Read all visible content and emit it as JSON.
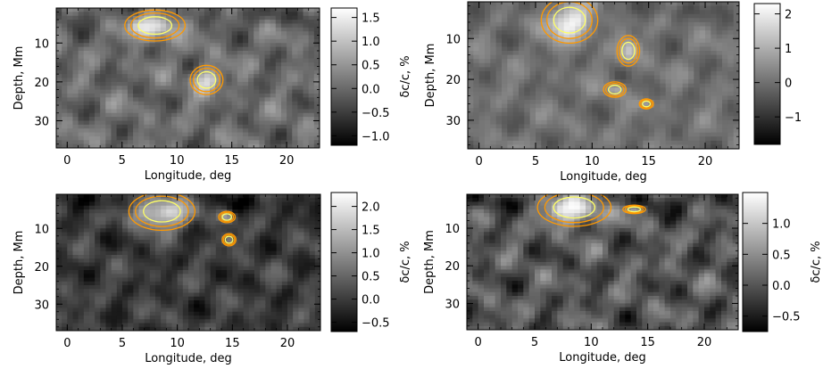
{
  "chart_data": [
    {
      "type": "heatmap",
      "xlabel": "Longitude, deg",
      "ylabel": "Depth, Mm",
      "colorbar_label": "δc/c, %",
      "x_ticks": [
        0,
        5,
        10,
        15,
        20
      ],
      "y_ticks": [
        10,
        20,
        30
      ],
      "xlim": [
        -1,
        23
      ],
      "ylim": [
        37,
        1
      ],
      "colorbar_ticks": [
        1.5,
        1.0,
        0.5,
        0.0,
        -0.5,
        -1.0
      ],
      "colorbar_range": [
        -1.2,
        1.7
      ],
      "colormap": "grayscale",
      "contour_colors": [
        "#ff9900",
        "#ffff66"
      ],
      "features": [
        {
          "x": 8.0,
          "y": 5.5,
          "rx": 2.2,
          "ry": 3.2,
          "value": 1.6
        },
        {
          "x": 12.7,
          "y": 19.5,
          "rx": 1.2,
          "ry": 3.0,
          "value": 1.3
        }
      ]
    },
    {
      "type": "heatmap",
      "xlabel": "Longitude, deg",
      "ylabel": "Depth, Mm",
      "colorbar_label": "δc/c, %",
      "x_ticks": [
        0,
        5,
        10,
        15,
        20
      ],
      "y_ticks": [
        10,
        20,
        30
      ],
      "xlim": [
        -1,
        23
      ],
      "ylim": [
        37,
        1
      ],
      "colorbar_ticks": [
        2,
        1,
        0,
        -1
      ],
      "colorbar_range": [
        -1.8,
        2.3
      ],
      "colormap": "grayscale",
      "contour_colors": [
        "#ff9900",
        "#ffff66"
      ],
      "features": [
        {
          "x": 8.0,
          "y": 5.5,
          "rx": 2.0,
          "ry": 4.5,
          "value": 2.2
        },
        {
          "x": 13.2,
          "y": 13.0,
          "rx": 0.8,
          "ry": 3.0,
          "value": 1.3
        },
        {
          "x": 12.0,
          "y": 22.5,
          "rx": 0.8,
          "ry": 1.5,
          "value": 1.0
        },
        {
          "x": 14.8,
          "y": 26.0,
          "rx": 0.5,
          "ry": 1.0,
          "value": 0.9
        }
      ]
    },
    {
      "type": "heatmap",
      "xlabel": "Longitude, deg",
      "ylabel": "Depth, Mm",
      "colorbar_label": "δc/c, %",
      "x_ticks": [
        0,
        5,
        10,
        15,
        20
      ],
      "y_ticks": [
        10,
        20,
        30
      ],
      "xlim": [
        -1,
        23
      ],
      "ylim": [
        37,
        1
      ],
      "colorbar_ticks": [
        2.0,
        1.5,
        1.0,
        0.5,
        0.0,
        -0.5
      ],
      "colorbar_range": [
        -0.7,
        2.3
      ],
      "colormap": "grayscale",
      "contour_colors": [
        "#ff9900",
        "#ffff66"
      ],
      "features": [
        {
          "x": 8.6,
          "y": 5.5,
          "rx": 2.4,
          "ry": 4.0,
          "value": 2.2
        },
        {
          "x": 14.5,
          "y": 7.0,
          "rx": 0.6,
          "ry": 1.2,
          "value": 1.3
        },
        {
          "x": 14.7,
          "y": 13.0,
          "rx": 0.5,
          "ry": 1.3,
          "value": 0.9
        }
      ]
    },
    {
      "type": "heatmap",
      "xlabel": "Longitude, deg",
      "ylabel": "Depth, Mm",
      "colorbar_label": "δc/c, %",
      "x_ticks": [
        0,
        5,
        10,
        15,
        20
      ],
      "y_ticks": [
        10,
        20,
        30
      ],
      "xlim": [
        -1,
        23
      ],
      "ylim": [
        37,
        1
      ],
      "colorbar_ticks": [
        1.0,
        0.5,
        0.0,
        -0.5
      ],
      "colorbar_range": [
        -0.75,
        1.5
      ],
      "colormap": "grayscale",
      "contour_colors": [
        "#ff9900",
        "#ffff66"
      ],
      "features": [
        {
          "x": 8.5,
          "y": 4.5,
          "rx": 2.6,
          "ry": 4.0,
          "value": 1.5
        },
        {
          "x": 13.8,
          "y": 5.0,
          "rx": 0.8,
          "ry": 0.9,
          "value": 1.0
        }
      ]
    }
  ]
}
